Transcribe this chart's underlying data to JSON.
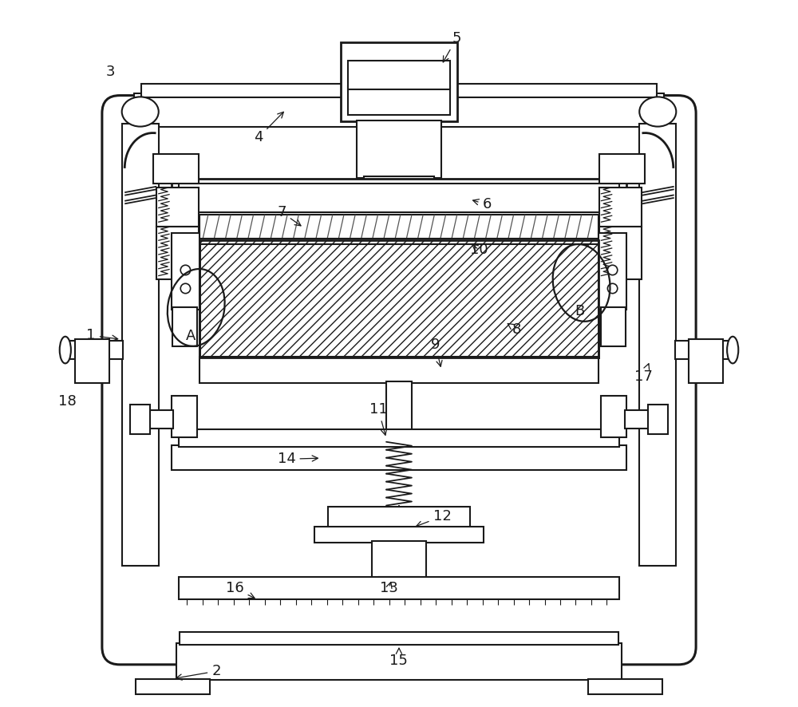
{
  "bg_color": "#ffffff",
  "line_color": "#1a1a1a",
  "lw": 1.5,
  "figsize": [
    10.0,
    8.86
  ],
  "dpi": 100
}
